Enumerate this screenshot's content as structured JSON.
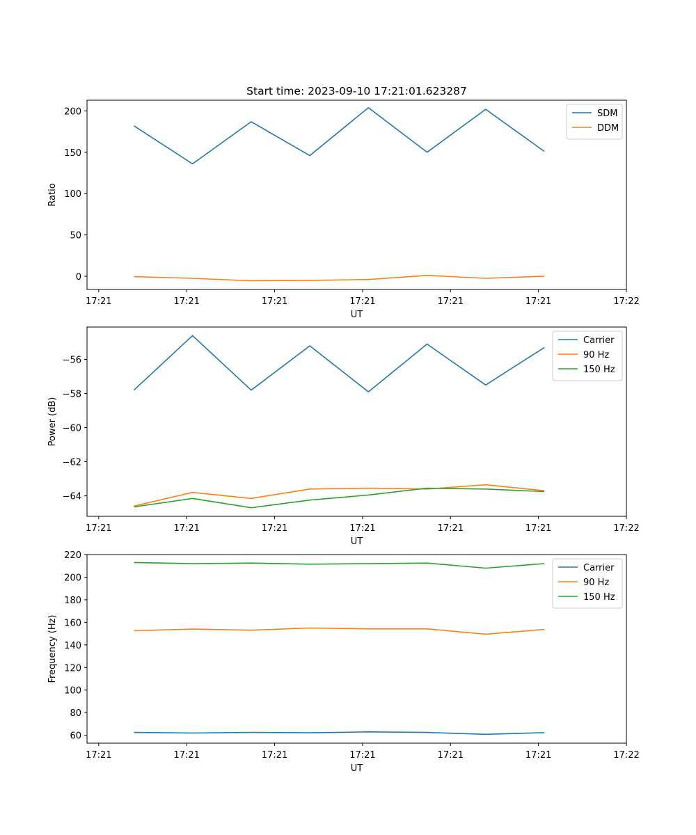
{
  "title": "Start time: 2023-09-10 17:21:01.623287",
  "colors": {
    "blue": "#1f77b4",
    "orange": "#ff7f0e",
    "green": "#2ca02c",
    "axis": "#000000"
  },
  "chart_data": [
    {
      "type": "line",
      "title": "Start time: 2023-09-10 17:21:01.623287",
      "xlabel": "UT",
      "ylabel": "Ratio",
      "x": [
        1,
        2,
        3,
        4,
        5,
        6,
        7,
        8
      ],
      "xlim": [
        0.2,
        9.4
      ],
      "xticks": [
        0.4,
        1.9,
        3.4,
        4.9,
        6.4,
        7.9,
        9.4
      ],
      "xtick_labels": [
        "17:21",
        "17:21",
        "17:21",
        "17:21",
        "17:21",
        "17:21",
        "17:22"
      ],
      "ylim": [
        -16,
        213
      ],
      "yticks": [
        0,
        50,
        100,
        150,
        200
      ],
      "ytick_labels": [
        "0",
        "50",
        "100",
        "150",
        "200"
      ],
      "legend_position": "top-right",
      "series": [
        {
          "name": "SDM",
          "color": "#1f77b4",
          "values": [
            182,
            136,
            187,
            146,
            204,
            150,
            202,
            151
          ]
        },
        {
          "name": "DDM",
          "color": "#ff7f0e",
          "values": [
            -0.5,
            -2.5,
            -5.5,
            -5.0,
            -4.0,
            1.0,
            -2.5,
            0.0
          ]
        }
      ]
    },
    {
      "type": "line",
      "title": "",
      "xlabel": "UT",
      "ylabel": "Power (dB)",
      "x": [
        1,
        2,
        3,
        4,
        5,
        6,
        7,
        8
      ],
      "xlim": [
        0.2,
        9.4
      ],
      "xticks": [
        0.4,
        1.9,
        3.4,
        4.9,
        6.4,
        7.9,
        9.4
      ],
      "xtick_labels": [
        "17:21",
        "17:21",
        "17:21",
        "17:21",
        "17:21",
        "17:21",
        "17:22"
      ],
      "ylim": [
        -65.2,
        -54.1
      ],
      "yticks": [
        -64,
        -62,
        -60,
        -58,
        -56
      ],
      "ytick_labels": [
        "−64",
        "−62",
        "−60",
        "−58",
        "−56"
      ],
      "legend_position": "top-right",
      "series": [
        {
          "name": "Carrier",
          "color": "#1f77b4",
          "values": [
            -57.8,
            -54.6,
            -57.8,
            -55.2,
            -57.9,
            -55.1,
            -57.5,
            -55.3
          ]
        },
        {
          "name": "90 Hz",
          "color": "#ff7f0e",
          "values": [
            -64.6,
            -63.8,
            -64.15,
            -63.6,
            -63.55,
            -63.6,
            -63.35,
            -63.7
          ]
        },
        {
          "name": "150 Hz",
          "color": "#2ca02c",
          "values": [
            -64.65,
            -64.15,
            -64.7,
            -64.25,
            -63.95,
            -63.55,
            -63.6,
            -63.75
          ]
        }
      ]
    },
    {
      "type": "line",
      "title": "",
      "xlabel": "UT",
      "ylabel": "Frequency (Hz)",
      "x": [
        1,
        2,
        3,
        4,
        5,
        6,
        7,
        8
      ],
      "xlim": [
        0.2,
        9.4
      ],
      "xticks": [
        0.4,
        1.9,
        3.4,
        4.9,
        6.4,
        7.9,
        9.4
      ],
      "xtick_labels": [
        "17:21",
        "17:21",
        "17:21",
        "17:21",
        "17:21",
        "17:21",
        "17:22"
      ],
      "ylim": [
        53,
        220
      ],
      "yticks": [
        60,
        80,
        100,
        120,
        140,
        160,
        180,
        200,
        220
      ],
      "ytick_labels": [
        "60",
        "80",
        "100",
        "120",
        "140",
        "160",
        "180",
        "200",
        "220"
      ],
      "legend_position": "top-right",
      "series": [
        {
          "name": "Carrier",
          "color": "#1f77b4",
          "values": [
            62.5,
            62.0,
            62.5,
            62.2,
            63.0,
            62.5,
            60.8,
            62.3
          ]
        },
        {
          "name": "90 Hz",
          "color": "#ff7f0e",
          "values": [
            152.5,
            154.0,
            153.0,
            155.0,
            154.2,
            154.2,
            149.5,
            153.7
          ]
        },
        {
          "name": "150 Hz",
          "color": "#2ca02c",
          "values": [
            213.0,
            212.0,
            212.5,
            211.5,
            212.0,
            212.5,
            208.0,
            212.0
          ]
        }
      ]
    }
  ]
}
